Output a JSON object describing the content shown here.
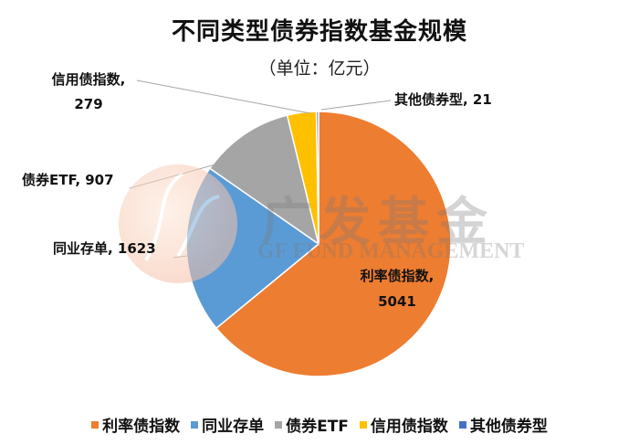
{
  "chart_data": {
    "type": "pie",
    "title": "不同类型债券指数基金规模",
    "subtitle": "（单位：亿元）",
    "unit": "亿元",
    "categories": [
      "利率债指数",
      "同业存单",
      "债券ETF",
      "信用债指数",
      "其他债券型"
    ],
    "values": [
      5041,
      1623,
      907,
      279,
      21
    ],
    "colors": [
      "#ED7D31",
      "#5B9BD5",
      "#A5A5A5",
      "#FFC000",
      "#4472C4"
    ],
    "data_labels": [
      "利率债指数, 5041",
      "同业存单, 1623",
      "债券ETF, 907",
      "信用债指数, 279",
      "其他债券型, 21"
    ],
    "legend_position": "bottom",
    "start_angle_deg": 0,
    "direction": "clockwise"
  },
  "labels": {
    "rate_bond_name": "利率债指数,",
    "rate_bond_value": "5041",
    "ncd": "同业存单, 1623",
    "bond_etf": "债券ETF, 907",
    "credit_name": "信用债指数,",
    "credit_value": "279",
    "other": "其他债券型, 21"
  },
  "legend": [
    {
      "label": "利率债指数",
      "color": "#ED7D31"
    },
    {
      "label": "同业存单",
      "color": "#5B9BD5"
    },
    {
      "label": "债券ETF",
      "color": "#A5A5A5"
    },
    {
      "label": "信用债指数",
      "color": "#FFC000"
    },
    {
      "label": "其他债券型",
      "color": "#4472C4"
    }
  ],
  "watermark": {
    "cn": "广发基金",
    "en": "GF FUND MANAGEMENT"
  }
}
